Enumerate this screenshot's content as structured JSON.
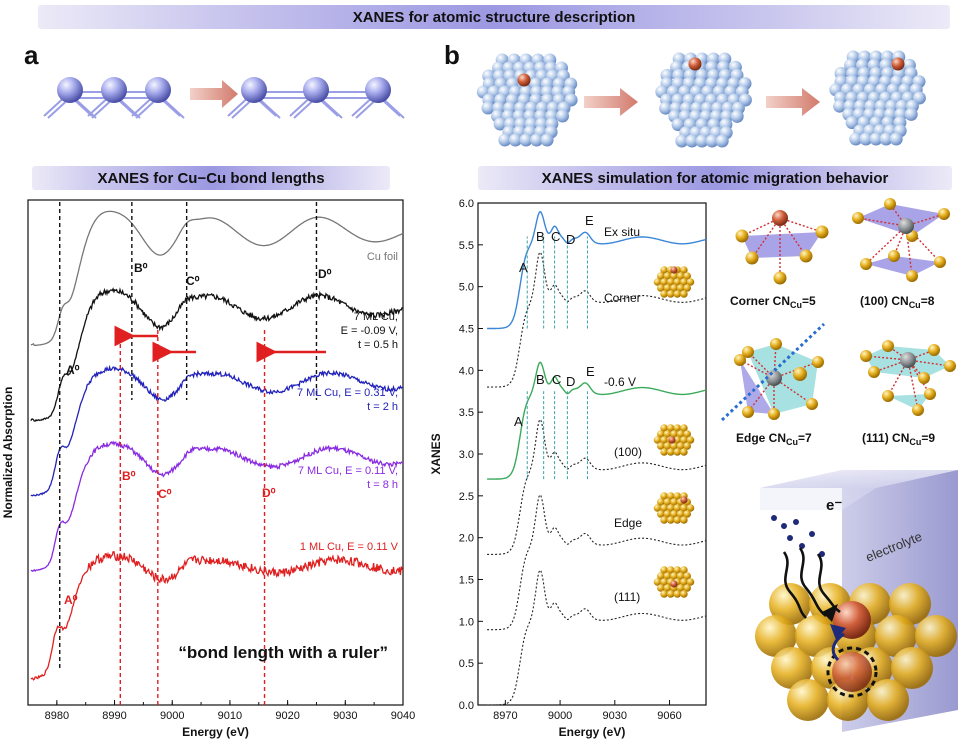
{
  "header": {
    "title": "XANES for atomic structure description"
  },
  "panel_a": {
    "letter": "a",
    "banner": "XANES for Cu−Cu bond lengths",
    "ruler_text": "“bond length with a ruler”",
    "chart_data": {
      "type": "line",
      "xlabel": "Energy (eV)",
      "ylabel": "Normalized Absorption",
      "xlim": [
        8975,
        9040
      ],
      "xticks": [
        "8980",
        "8990",
        "9000",
        "9010",
        "9020",
        "9030",
        "9040"
      ],
      "series": [
        {
          "name": "Cu foil",
          "color": "#777777",
          "offset": 4.0,
          "noise": 0,
          "edge": 8980,
          "label_lines": [
            "Cu foil"
          ]
        },
        {
          "name": "7 ML Cu, E = -0.09 V, t = 0.5 h",
          "color": "#111111",
          "offset": 3.1,
          "noise": 0.05,
          "edge": 8980,
          "label_lines": [
            "7 ML Cu,",
            "E = -0.09 V,",
            "t = 0.5 h"
          ]
        },
        {
          "name": "7 ML Cu, E = 0.31 V, t = 2 h",
          "color": "#2222bb",
          "offset": 2.2,
          "noise": 0.04,
          "edge": 8979.5,
          "label_lines": [
            "7 ML Cu, E = 0.31 V,",
            "t = 2 h"
          ]
        },
        {
          "name": "7 ML Cu, E = 0.11 V, t = 8 h",
          "color": "#8a2be2",
          "offset": 1.3,
          "noise": 0.04,
          "edge": 8979.5,
          "label_lines": [
            "7 ML Cu, E = 0.11 V,",
            "t = 8 h"
          ]
        },
        {
          "name": "1 ML Cu, E = 0.11 V",
          "color": "#e02020",
          "offset": 0.0,
          "noise": 0.08,
          "edge": 8979,
          "label_lines": [
            "1 ML Cu, E = 0.11 V"
          ]
        }
      ],
      "black_markers": [
        8980.5,
        8993,
        9002.5,
        9025
      ],
      "red_markers": [
        8991,
        8997.5,
        9016
      ],
      "labels": {
        "A_top": "A⁰",
        "B_top": "B⁰",
        "C_top": "C⁰",
        "D_top": "D⁰",
        "A_bottom": "A⁰",
        "B_bottom": "B⁰",
        "C_bottom": "C⁰",
        "D_bottom": "D⁰"
      }
    }
  },
  "panel_b": {
    "letter": "b",
    "banner": "XANES simulation for atomic migration behavior",
    "chart_data": {
      "type": "line",
      "xlabel": "Energy (eV)",
      "ylabel": "XANES",
      "xlim": [
        8955,
        9080
      ],
      "ylim": [
        0,
        6
      ],
      "xticks": [
        "8970",
        "9000",
        "9030",
        "9060"
      ],
      "yticks": [
        "0.0",
        "0.5",
        "1.0",
        "1.5",
        "2.0",
        "2.5",
        "3.0",
        "3.5",
        "4.0",
        "4.5",
        "5.0",
        "5.5",
        "6.0"
      ],
      "series": [
        {
          "name": "Ex situ",
          "color": "#3a86d8",
          "dash": false,
          "offset": 4.5
        },
        {
          "name": "Corner",
          "color": "#222222",
          "dash": true,
          "offset": 3.8
        },
        {
          "name": "-0.6 V",
          "color": "#3aaa5a",
          "dash": false,
          "offset": 2.7
        },
        {
          "name": "(100)",
          "color": "#222222",
          "dash": true,
          "offset": 1.8
        },
        {
          "name": "Edge",
          "color": "#222222",
          "dash": true,
          "offset": 0.9
        },
        {
          "name": "(111)",
          "color": "#222222",
          "dash": true,
          "offset": 0.0
        }
      ],
      "peak_labels": [
        "A",
        "B",
        "C",
        "D",
        "E"
      ]
    },
    "legend": {
      "ex_situ": "Ex situ",
      "corner": "Corner",
      "minus06": "-0.6 V",
      "p100": "(100)",
      "edge": "Edge",
      "p111": "(111)"
    },
    "structures": {
      "corner": "Corner  CN",
      "corner_sub": "Cu",
      "corner_val": "=5",
      "p100": "(100)  CN",
      "p100_sub": "Cu",
      "p100_val": "=8",
      "edge": "Edge  CN",
      "edge_sub": "Cu",
      "edge_val": "=7",
      "p111": "(111)  CN",
      "p111_sub": "Cu",
      "p111_val": "=9"
    },
    "cube": {
      "electron": "e⁻",
      "electrolyte": "electrolyte"
    }
  },
  "colors": {
    "banner": "#9c98e2",
    "sphere": "#a8acec",
    "arrow": "#d8877a",
    "gold": "#e6b020",
    "copper": "#c0624a"
  }
}
